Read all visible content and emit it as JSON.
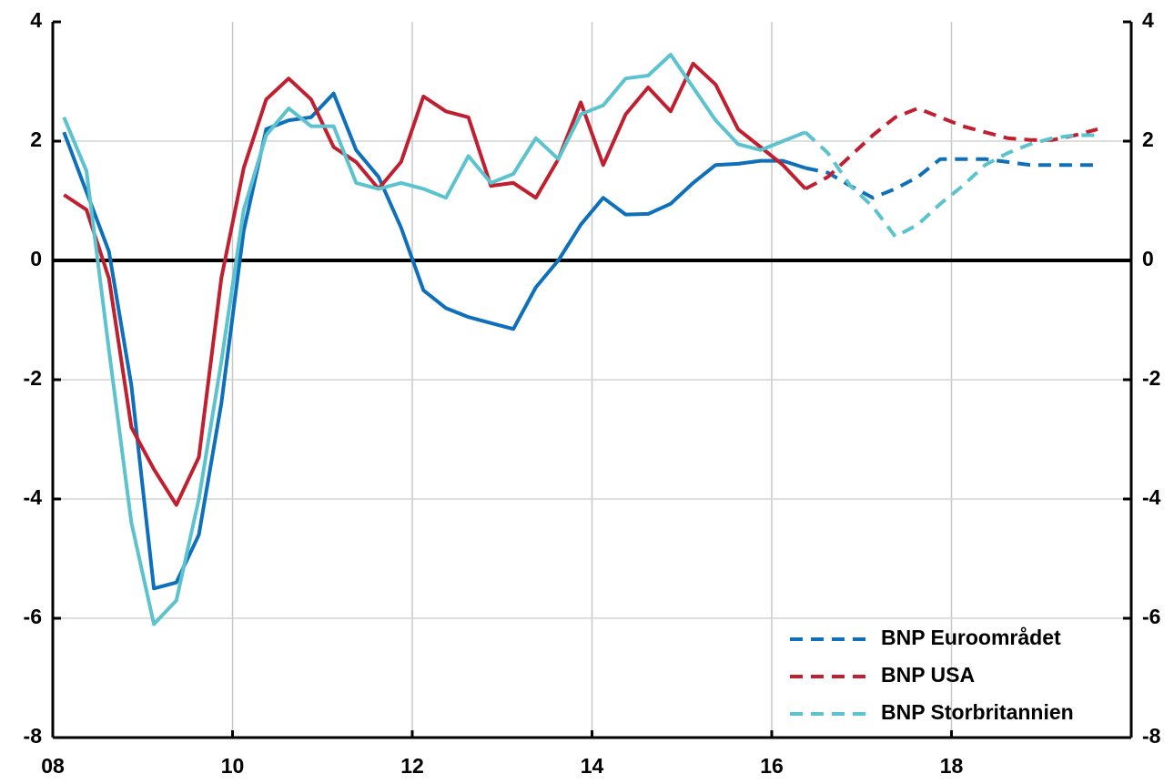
{
  "chart_data": {
    "type": "line",
    "x": [
      2008.125,
      2008.375,
      2008.625,
      2008.875,
      2009.125,
      2009.375,
      2009.625,
      2009.875,
      2010.125,
      2010.375,
      2010.625,
      2010.875,
      2011.125,
      2011.375,
      2011.625,
      2011.875,
      2012.125,
      2012.375,
      2012.625,
      2012.875,
      2013.125,
      2013.375,
      2013.625,
      2013.875,
      2014.125,
      2014.375,
      2014.625,
      2014.875,
      2015.125,
      2015.375,
      2015.625,
      2015.875,
      2016.125,
      2016.375,
      2016.625,
      2016.875,
      2017.125,
      2017.375,
      2017.625,
      2017.875,
      2018.125,
      2018.375,
      2018.625,
      2018.875,
      2019.125,
      2019.375,
      2019.625
    ],
    "forecast_from_x": 2016.375,
    "series": [
      {
        "name": "BNP Euroområdet",
        "color": "#0e6fba",
        "values": [
          2.15,
          1.15,
          0.15,
          -2.1,
          -5.5,
          -5.4,
          -4.6,
          -2.4,
          0.5,
          2.2,
          2.35,
          2.4,
          2.8,
          1.85,
          1.4,
          0.55,
          -0.5,
          -0.8,
          -0.95,
          -1.05,
          -1.15,
          -0.45,
          0.0,
          0.6,
          1.05,
          0.77,
          0.78,
          0.95,
          1.3,
          1.6,
          1.62,
          1.67,
          1.67,
          1.55,
          1.47,
          1.25,
          1.05,
          1.2,
          1.4,
          1.7,
          1.7,
          1.7,
          1.65,
          1.6,
          1.6,
          1.6,
          1.6
        ]
      },
      {
        "name": "BNP USA",
        "color": "#c01f2f",
        "values": [
          1.1,
          0.85,
          -0.3,
          -2.8,
          -3.5,
          -4.1,
          -3.3,
          -0.3,
          1.55,
          2.7,
          3.05,
          2.7,
          1.9,
          1.65,
          1.2,
          1.65,
          2.75,
          2.5,
          2.4,
          1.25,
          1.3,
          1.05,
          1.7,
          2.65,
          1.6,
          2.45,
          2.9,
          2.5,
          3.3,
          2.95,
          2.2,
          1.9,
          1.6,
          1.2,
          1.4,
          1.75,
          2.1,
          2.4,
          2.55,
          2.4,
          2.25,
          2.15,
          2.05,
          2.02,
          2.02,
          2.1,
          2.2
        ]
      },
      {
        "name": "BNP Storbritannien",
        "color": "#5cc3ce",
        "values": [
          2.4,
          1.5,
          -1.5,
          -4.4,
          -6.1,
          -5.7,
          -4.0,
          -1.7,
          0.85,
          2.1,
          2.55,
          2.25,
          2.25,
          1.3,
          1.2,
          1.3,
          1.2,
          1.05,
          1.75,
          1.3,
          1.45,
          2.05,
          1.7,
          2.45,
          2.6,
          3.05,
          3.1,
          3.45,
          2.9,
          2.35,
          1.95,
          1.85,
          2.0,
          2.15,
          1.8,
          1.25,
          0.9,
          0.4,
          0.6,
          0.95,
          1.25,
          1.6,
          1.8,
          1.95,
          2.05,
          2.1,
          2.1
        ]
      }
    ],
    "xlim": [
      2008,
      2020
    ],
    "xticks": [
      {
        "value": 2008,
        "label": "08"
      },
      {
        "value": 2010,
        "label": "10"
      },
      {
        "value": 2012,
        "label": "12"
      },
      {
        "value": 2014,
        "label": "14"
      },
      {
        "value": 2016,
        "label": "16"
      },
      {
        "value": 2018,
        "label": "18"
      }
    ],
    "ylim": [
      -8,
      4
    ],
    "yticks": [
      -8,
      -6,
      -4,
      -2,
      0,
      2,
      4
    ],
    "y2lim": [
      -8,
      4
    ],
    "y2ticks": [
      -8,
      -6,
      -4,
      -2,
      0,
      2,
      4
    ],
    "grid": true,
    "legend": "lower right"
  }
}
